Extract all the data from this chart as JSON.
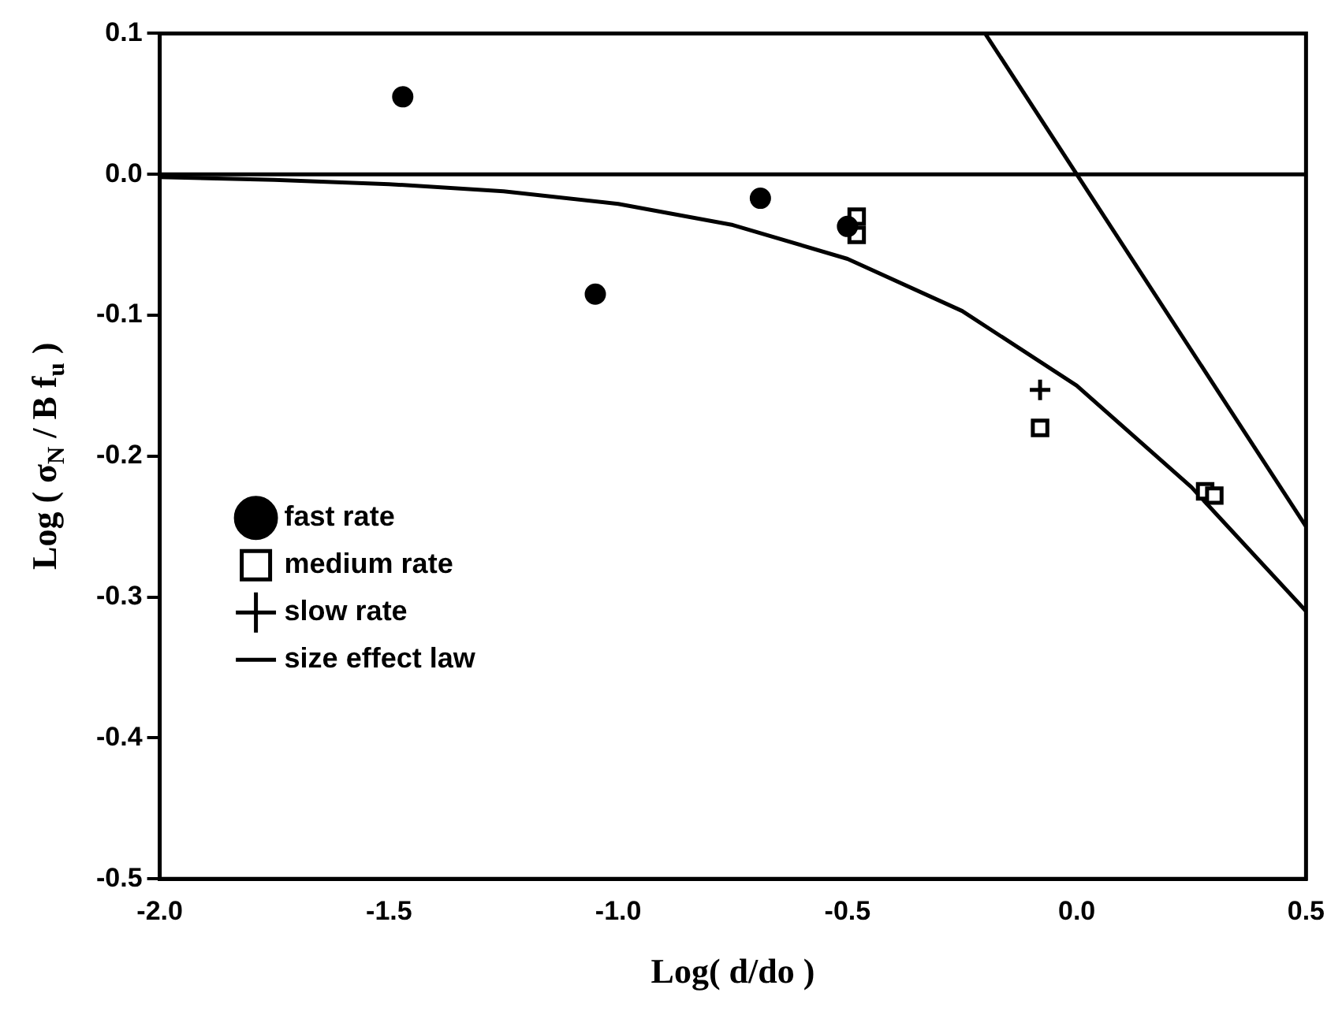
{
  "chart_data": {
    "type": "scatter",
    "xlabel": "Log( d/do )",
    "ylabel": "Log ( σ$_{N}$ / B f$_{u}$ )",
    "xlim": [
      -2,
      0.5
    ],
    "xticks": [
      {
        "value": -2,
        "label": "-2.0"
      },
      {
        "value": -1.5,
        "label": "-1.5"
      },
      {
        "value": -1,
        "label": "-1.0"
      },
      {
        "value": -0.5,
        "label": "-0.5"
      },
      {
        "value": 0,
        "label": "0.0"
      },
      {
        "value": 0.5,
        "label": "0.5"
      }
    ],
    "ylim": [
      -0.5,
      0.1
    ],
    "yticks": [
      {
        "value": -0.5,
        "label": "-0.5"
      },
      {
        "value": -0.4,
        "label": "-0.4"
      },
      {
        "value": -0.3,
        "label": "-0.3"
      },
      {
        "value": -0.2,
        "label": "-0.2"
      },
      {
        "value": -0.1,
        "label": "-0.1"
      },
      {
        "value": 0,
        "label": "0.0"
      },
      {
        "value": 0.1,
        "label": "0.1"
      }
    ],
    "grid": false,
    "legend": "bottom left",
    "ref_lines": [
      {
        "axis": "y",
        "value": 0,
        "color": "#000000"
      }
    ],
    "series": [
      {
        "name": "fast rate",
        "type": "scatter",
        "marker": "circle",
        "color": "#000000",
        "x": [
          -1.47,
          -1.05,
          -0.69,
          -0.5
        ],
        "values": [
          0.055,
          -0.085,
          -0.017,
          -0.037
        ]
      },
      {
        "name": "medium rate",
        "type": "scatter",
        "marker": "square",
        "color": "#000000",
        "x": [
          -0.48,
          -0.48,
          -0.08,
          0.28,
          0.3
        ],
        "values": [
          -0.03,
          -0.043,
          -0.18,
          -0.225,
          -0.228
        ]
      },
      {
        "name": "slow rate",
        "type": "scatter",
        "marker": "cross",
        "color": "#000000",
        "x": [
          -0.08
        ],
        "values": [
          -0.153
        ]
      },
      {
        "name": "size effect law",
        "type": "line",
        "marker": "none",
        "color": "#000000",
        "x": [
          -2,
          -1.75,
          -1.5,
          -1.25,
          -1,
          -0.75,
          -0.5,
          -0.25,
          0,
          0.25,
          0.5
        ],
        "values": [
          -0.002,
          -0.004,
          -0.007,
          -0.012,
          -0.021,
          -0.036,
          -0.06,
          -0.097,
          -0.15,
          -0.222,
          -0.31
        ]
      },
      {
        "type": "line",
        "marker": "none",
        "color": "#000000",
        "x": [
          -0.2,
          0.5
        ],
        "values": [
          0.1,
          -0.25
        ]
      }
    ]
  }
}
